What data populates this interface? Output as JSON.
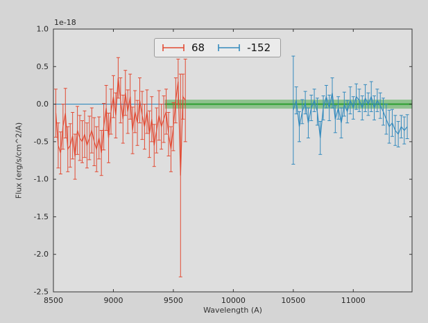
{
  "chart_data": {
    "type": "line",
    "subtype": "errorbar-spectra",
    "title": "",
    "xlabel": "Wavelength (A)",
    "ylabel": "Flux (erg/s/cm^2/A)",
    "offset_label": "1e-18",
    "xlim": [
      8500,
      11490
    ],
    "ylim": [
      -2.5,
      1.0
    ],
    "xticks": [
      8500,
      9000,
      9500,
      10000,
      10500,
      11000
    ],
    "yticks": [
      1.0,
      0.5,
      0.0,
      -0.5,
      -1.0,
      -1.5,
      -2.0,
      -2.5
    ],
    "ytick_labels": [
      "1.0",
      "0.5",
      "0.0",
      "-0.5",
      "-1.0",
      "-1.5",
      "-2.0",
      "-2.5"
    ],
    "grid": false,
    "legend": {
      "position": "upper center",
      "entries": [
        {
          "label": "68",
          "color": "#e24a33"
        },
        {
          "label": "-152",
          "color": "#348abd"
        }
      ]
    },
    "baseline": {
      "y": 0.0,
      "x0": 8500,
      "x1": 11490,
      "color": "#348abd"
    },
    "band": {
      "x0": 9430,
      "x1": 11490,
      "y_center": 0.0,
      "half_height": 0.06,
      "color": "#2ca02c",
      "opacity": 0.45
    },
    "series": [
      {
        "name": "68",
        "color": "#e24a33",
        "x": [
          8520,
          8540,
          8560,
          8580,
          8600,
          8620,
          8640,
          8660,
          8680,
          8700,
          8720,
          8740,
          8760,
          8780,
          8800,
          8820,
          8840,
          8860,
          8880,
          8900,
          8920,
          8940,
          8960,
          8980,
          9000,
          9020,
          9040,
          9060,
          9080,
          9100,
          9120,
          9140,
          9160,
          9180,
          9200,
          9220,
          9240,
          9260,
          9280,
          9300,
          9320,
          9340,
          9360,
          9380,
          9400,
          9420,
          9440,
          9460,
          9480,
          9500,
          9520,
          9540,
          9560,
          9580,
          9600
        ],
        "y": [
          -0.12,
          -0.55,
          -0.65,
          -0.3,
          -0.12,
          -0.6,
          -0.55,
          -0.42,
          -0.7,
          -0.35,
          -0.45,
          -0.5,
          -0.4,
          -0.55,
          -0.45,
          -0.35,
          -0.5,
          -0.6,
          -0.45,
          -0.65,
          -0.3,
          -0.05,
          -0.45,
          -0.1,
          0.1,
          -0.15,
          0.35,
          0.05,
          -0.2,
          0.15,
          -0.1,
          0.1,
          -0.35,
          -0.1,
          -0.25,
          0.05,
          -0.15,
          -0.3,
          -0.1,
          -0.4,
          -0.2,
          -0.55,
          -0.35,
          -0.15,
          -0.3,
          -0.2,
          -0.1,
          -0.4,
          -0.6,
          -0.3,
          0.05,
          0.3,
          -0.95,
          0.1,
          0.05
        ],
        "yerr": [
          0.32,
          0.3,
          0.28,
          0.3,
          0.33,
          0.3,
          0.29,
          0.31,
          0.3,
          0.32,
          0.3,
          0.28,
          0.31,
          0.3,
          0.29,
          0.3,
          0.32,
          0.3,
          0.28,
          0.3,
          0.31,
          0.3,
          0.33,
          0.3,
          0.28,
          0.3,
          0.27,
          0.3,
          0.32,
          0.3,
          0.29,
          0.3,
          0.31,
          0.28,
          0.3,
          0.3,
          0.32,
          0.3,
          0.29,
          0.31,
          0.3,
          0.28,
          0.3,
          0.33,
          0.3,
          0.31,
          0.3,
          0.29,
          0.3,
          0.32,
          0.3,
          0.3,
          1.35,
          0.3,
          0.55
        ]
      },
      {
        "name": "-152",
        "color": "#348abd",
        "x": [
          10500,
          10525,
          10550,
          10575,
          10600,
          10625,
          10650,
          10675,
          10700,
          10725,
          10750,
          10775,
          10800,
          10825,
          10850,
          10875,
          10900,
          10925,
          10950,
          10975,
          11000,
          11025,
          11050,
          11075,
          11100,
          11125,
          11150,
          11175,
          11200,
          11225,
          11250,
          11275,
          11300,
          11325,
          11350,
          11375,
          11400,
          11425,
          11450
        ],
        "y": [
          -0.08,
          0.05,
          -0.3,
          -0.1,
          0.02,
          -0.25,
          -0.05,
          0.05,
          -0.1,
          -0.45,
          -0.05,
          0.1,
          -0.05,
          0.15,
          -0.2,
          -0.05,
          -0.25,
          0.0,
          -0.1,
          0.05,
          -0.05,
          0.1,
          0.05,
          -0.05,
          0.08,
          0.0,
          0.1,
          -0.05,
          0.05,
          -0.02,
          -0.1,
          -0.2,
          -0.3,
          -0.25,
          -0.35,
          -0.4,
          -0.3,
          -0.35,
          -0.3
        ],
        "yerr": [
          0.72,
          0.18,
          0.2,
          0.16,
          0.15,
          0.2,
          0.17,
          0.15,
          0.18,
          0.22,
          0.16,
          0.15,
          0.17,
          0.2,
          0.18,
          0.15,
          0.2,
          0.16,
          0.15,
          0.18,
          0.15,
          0.17,
          0.15,
          0.16,
          0.18,
          0.15,
          0.2,
          0.16,
          0.15,
          0.17,
          0.18,
          0.2,
          0.22,
          0.18,
          0.2,
          0.17,
          0.15,
          0.18,
          0.16
        ]
      }
    ]
  }
}
